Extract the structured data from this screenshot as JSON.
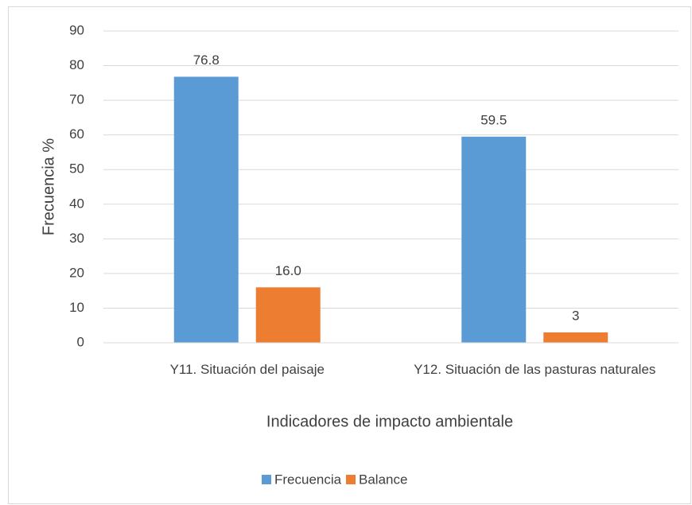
{
  "chart_data": {
    "type": "bar",
    "categories": [
      "Y11. Situación del paisaje",
      "Y12. Situación de las pasturas naturales"
    ],
    "series": [
      {
        "name": "Frecuencia",
        "color": "#5b9bd5",
        "values": [
          76.8,
          59.5
        ]
      },
      {
        "name": "Balance",
        "color": "#ed7d31",
        "values": [
          16,
          3
        ],
        "value_labels": [
          "16.0",
          "3"
        ]
      }
    ],
    "y_label": "Frecuencia %",
    "x_label": "Indicadores de impacto ambientale",
    "ylim": [
      0,
      90
    ],
    "yticks": [
      0,
      10,
      20,
      30,
      40,
      50,
      60,
      70,
      80,
      90
    ],
    "grid": true,
    "legend": "bottom"
  }
}
